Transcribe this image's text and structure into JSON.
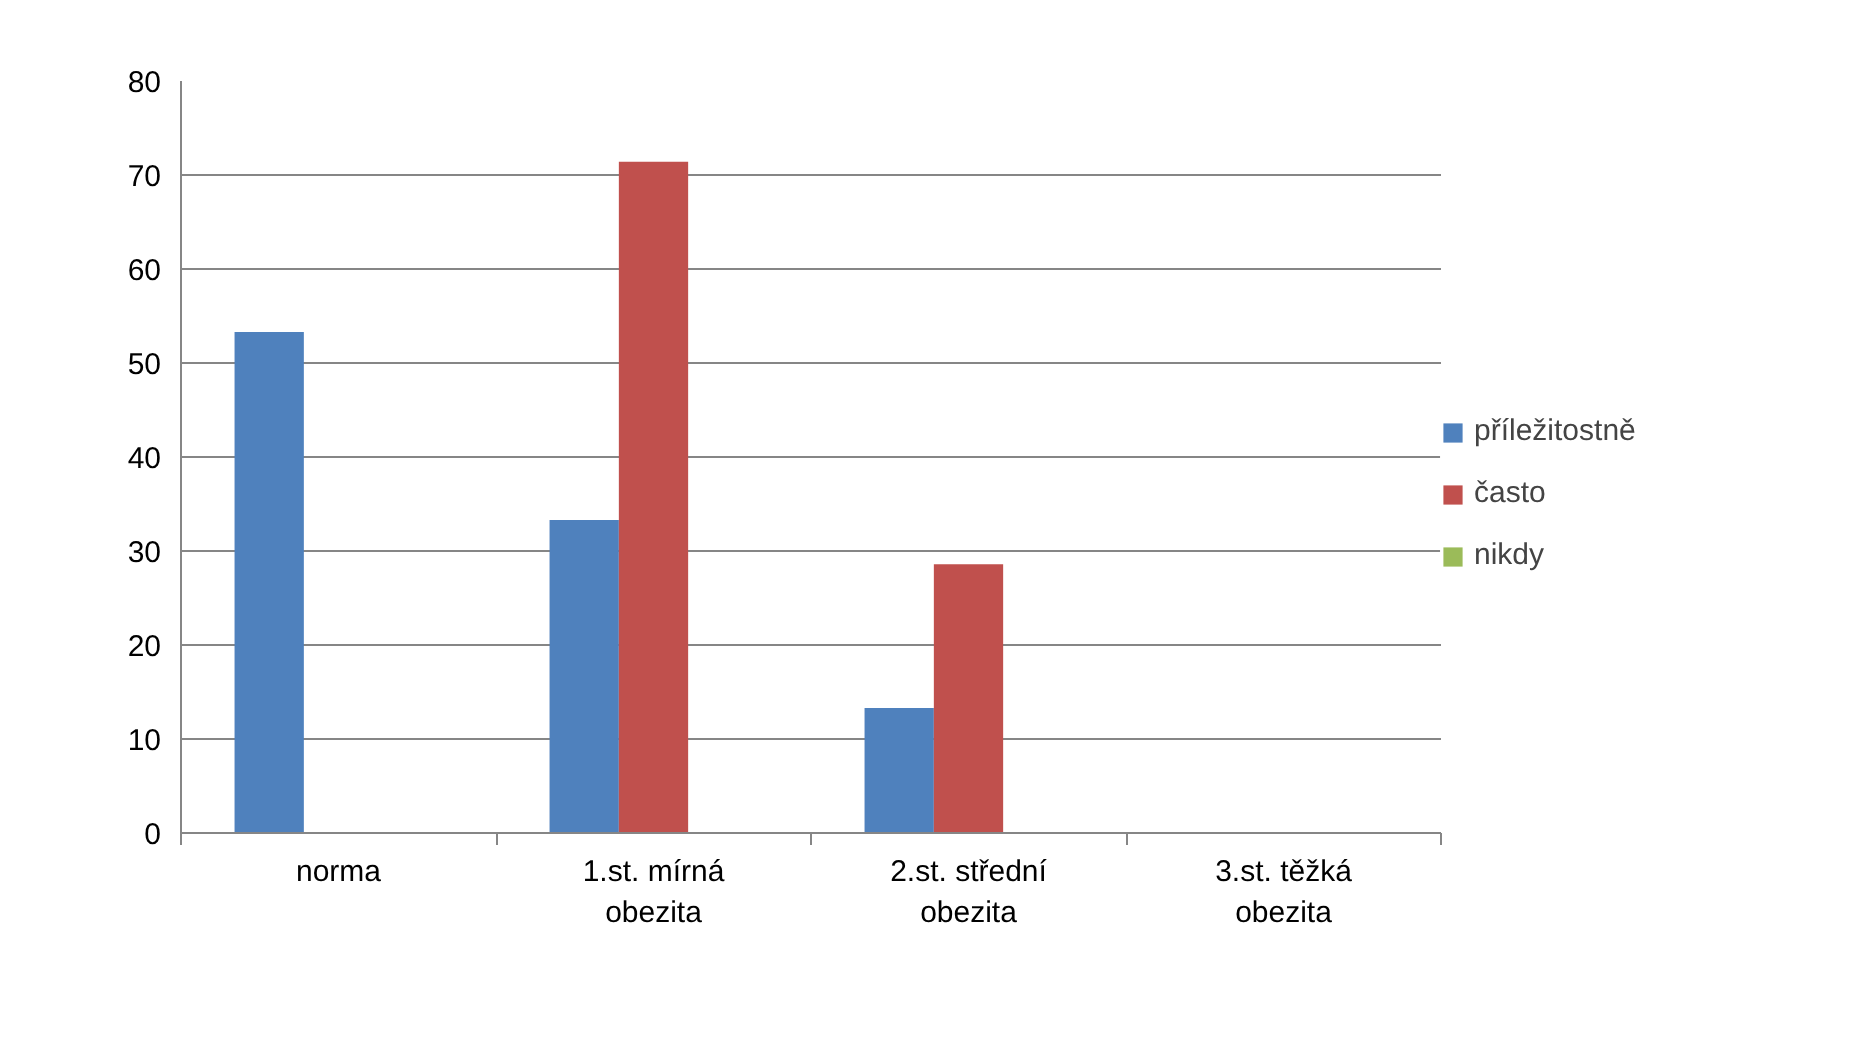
{
  "chart_data": {
    "type": "bar",
    "categories": [
      "norma",
      "1.st. mírná\nobezita",
      "2.st. střední\nobezita",
      "3.st. těžká\nobezita"
    ],
    "series": [
      {
        "name": "příležitostně",
        "color": "#4f81bd",
        "values": [
          53.3,
          33.3,
          13.3,
          0
        ]
      },
      {
        "name": "často",
        "color": "#c0504d",
        "values": [
          0,
          71.4,
          28.6,
          0
        ]
      },
      {
        "name": "nikdy",
        "color": "#9bbb59",
        "values": [
          0,
          0,
          0,
          0
        ]
      }
    ],
    "ylim": [
      0,
      80
    ],
    "yticks": [
      0,
      10,
      20,
      30,
      40,
      50,
      60,
      70,
      80
    ],
    "grid": "y",
    "legend": "right"
  }
}
